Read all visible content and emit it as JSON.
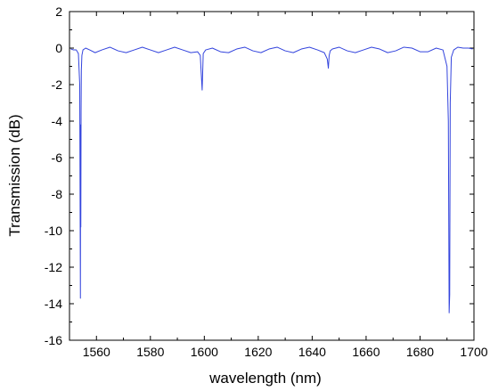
{
  "chart_data": {
    "type": "line",
    "title": "",
    "xlabel": "wavelength (nm)",
    "ylabel": "Transmission (dB)",
    "xlim": [
      1550,
      1700
    ],
    "ylim": [
      -16,
      2
    ],
    "xticks": [
      1560,
      1580,
      1600,
      1620,
      1640,
      1660,
      1680,
      1700
    ],
    "yticks": [
      2,
      0,
      -2,
      -4,
      -6,
      -8,
      -10,
      -12,
      -14,
      -16
    ],
    "grid": false,
    "legend": "none",
    "line_color": "#3344dd",
    "series": [
      {
        "x": [
          1550.5,
          1551.5,
          1552.5,
          1553.3,
          1553.8,
          1554.05,
          1554.15,
          1554.2,
          1554.3,
          1554.4,
          1554.6,
          1555.0,
          1556.0,
          1557.5,
          1559.5,
          1562.0,
          1565.0,
          1568.0,
          1571.0,
          1574.0,
          1577.0,
          1580.0,
          1583.0,
          1586.0,
          1589.0,
          1592.0,
          1595.0,
          1597.5,
          1598.5,
          1598.9,
          1599.2,
          1599.6,
          1600.5,
          1603.0,
          1606.0,
          1609.0,
          1612.0,
          1615.0,
          1618.0,
          1621.0,
          1624.0,
          1627.0,
          1630.0,
          1633.0,
          1636.0,
          1639.0,
          1642.0,
          1644.5,
          1645.6,
          1646.0,
          1646.3,
          1646.7,
          1647.5,
          1650.0,
          1653.0,
          1656.0,
          1659.0,
          1662.0,
          1665.0,
          1668.0,
          1671.0,
          1674.0,
          1677.0,
          1680.0,
          1683.0,
          1686.0,
          1688.5,
          1690.0,
          1690.5,
          1690.8,
          1691.0,
          1691.2,
          1691.6,
          1692.5,
          1694.0,
          1696.0,
          1698.0,
          1699.5
        ],
        "y": [
          -0.05,
          -0.1,
          -0.1,
          -0.3,
          -2.0,
          -13.7,
          -4.2,
          -9.8,
          -3.5,
          -1.2,
          -0.4,
          -0.1,
          0.0,
          -0.1,
          -0.25,
          -0.1,
          0.05,
          -0.15,
          -0.25,
          -0.1,
          0.05,
          -0.1,
          -0.25,
          -0.1,
          0.05,
          -0.1,
          -0.25,
          -0.2,
          -0.4,
          -1.5,
          -2.3,
          -0.3,
          -0.1,
          0.0,
          -0.2,
          -0.25,
          -0.05,
          0.05,
          -0.15,
          -0.25,
          -0.05,
          0.05,
          -0.15,
          -0.25,
          -0.05,
          0.05,
          -0.1,
          -0.25,
          -0.6,
          -1.1,
          -0.4,
          -0.15,
          -0.05,
          0.05,
          -0.15,
          -0.25,
          -0.1,
          0.05,
          -0.05,
          -0.25,
          -0.15,
          0.05,
          0.0,
          -0.2,
          -0.2,
          0.0,
          -0.1,
          -1.0,
          -4.0,
          -14.5,
          -13.5,
          -3.0,
          -0.5,
          -0.1,
          0.05,
          0.0,
          0.0,
          -0.05
        ]
      }
    ]
  }
}
